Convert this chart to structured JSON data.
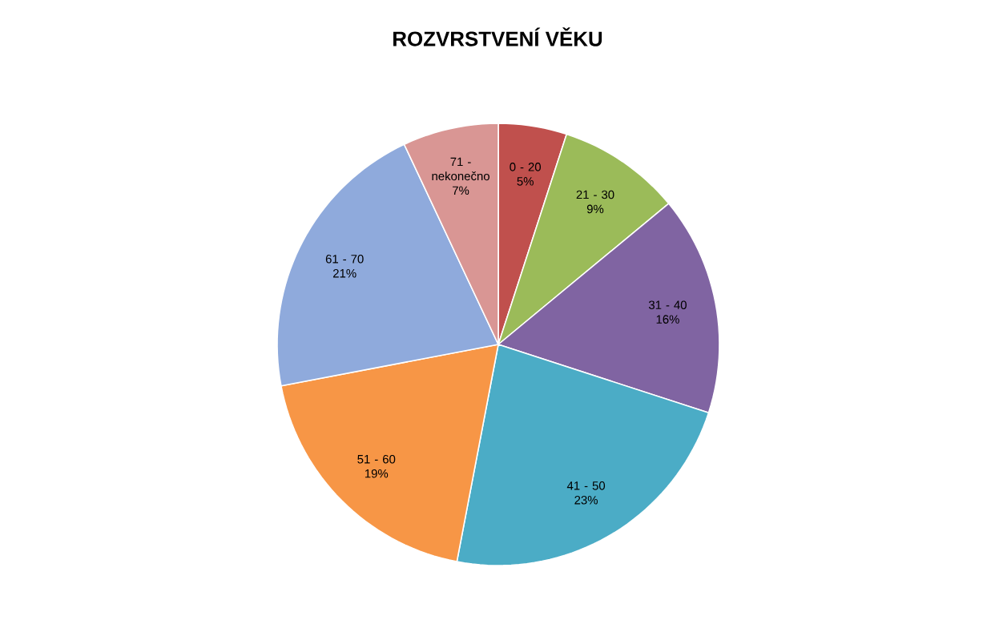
{
  "chart_data": {
    "type": "pie",
    "title": "ROZVRSTVENÍ VĚKU",
    "categories": [
      "0 - 20",
      "21 - 30",
      "31 - 40",
      "41 - 50",
      "51 - 60",
      "61 - 70",
      "71 - nekonečno"
    ],
    "values": [
      5,
      9,
      16,
      23,
      19,
      21,
      7
    ],
    "value_labels": [
      "5%",
      "9%",
      "16%",
      "23%",
      "19%",
      "21%",
      "7%"
    ],
    "colors": [
      "#c0504d",
      "#9bbb59",
      "#8064a2",
      "#4bacc6",
      "#f79646",
      "#8faadc",
      "#d99694"
    ]
  }
}
